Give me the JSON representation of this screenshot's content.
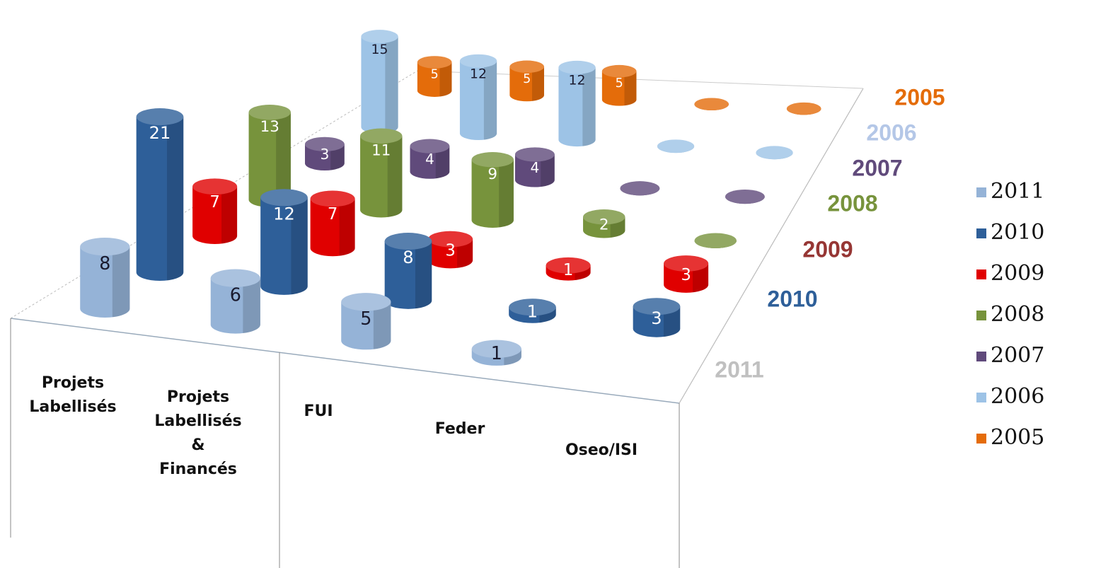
{
  "chart_data": {
    "type": "bar3d",
    "categories": [
      "Projets\nLabellisés",
      "Projets\nLabellisés\n&\nFinancés",
      "FUI",
      "Feder",
      "Oseo/ISI"
    ],
    "series": [
      {
        "name": "2011",
        "color": "#95b3d7",
        "label_color": "#c0c0c0",
        "values": [
          8,
          6,
          5,
          1,
          null
        ]
      },
      {
        "name": "2010",
        "color": "#2e5f99",
        "label_color": "#2e5f99",
        "values": [
          21,
          12,
          8,
          1,
          3
        ]
      },
      {
        "name": "2009",
        "color": "#e00000",
        "label_color": "#963634",
        "values": [
          7,
          7,
          3,
          1,
          3
        ]
      },
      {
        "name": "2008",
        "color": "#77933c",
        "label_color": "#77933c",
        "values": [
          13,
          11,
          9,
          2,
          0
        ]
      },
      {
        "name": "2007",
        "color": "#604a7b",
        "label_color": "#604a7b",
        "values": [
          3,
          4,
          4,
          0,
          0
        ]
      },
      {
        "name": "2006",
        "color": "#9dc3e6",
        "label_color": "#b4c7e7",
        "values": [
          15,
          12,
          12,
          0,
          0
        ]
      },
      {
        "name": "2005",
        "color": "#e46c0a",
        "label_color": "#e46c0a",
        "values": [
          5,
          5,
          5,
          0,
          0
        ]
      }
    ],
    "legend": "right"
  }
}
